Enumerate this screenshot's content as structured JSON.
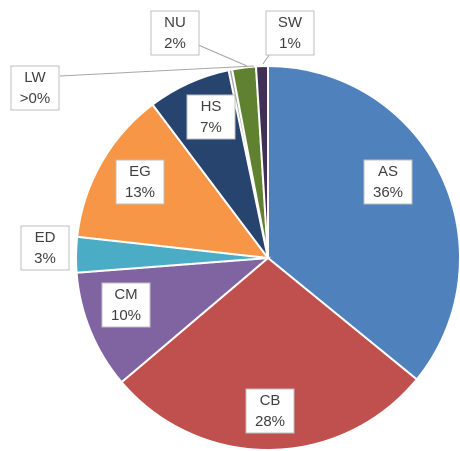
{
  "chart_data": {
    "type": "pie",
    "categories": [
      "AS",
      "CB",
      "CM",
      "ED",
      "EG",
      "HS",
      "LW",
      "NU",
      "SW"
    ],
    "values": [
      36,
      28,
      10,
      3,
      13,
      7,
      0.3,
      2,
      1
    ],
    "value_labels": [
      "36%",
      "28%",
      "10%",
      "3%",
      "13%",
      "7%",
      ">0%",
      "2%",
      "1%"
    ],
    "colors": [
      "#4f81bd",
      "#c0504d",
      "#8064a2",
      "#4bacc6",
      "#f79646",
      "#27446e",
      "#a5a5a5",
      "#5f8130",
      "#3f3151"
    ]
  }
}
